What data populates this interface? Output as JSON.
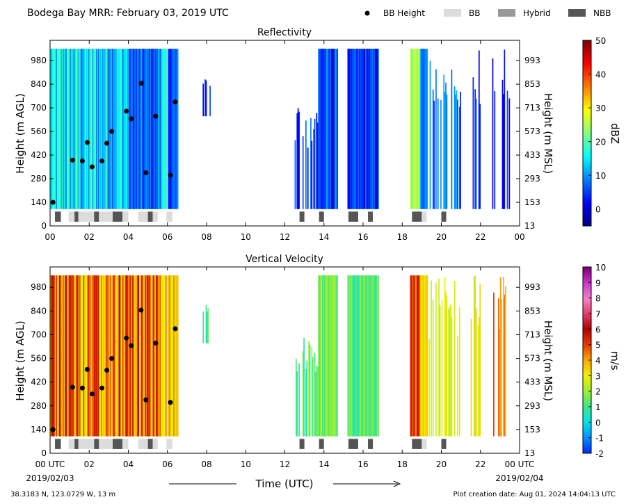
{
  "header": {
    "title": "Bodega Bay MRR:  February 03, 2019 UTC",
    "legend": [
      {
        "label": "BB Height",
        "kind": "dot",
        "color": "#000000"
      },
      {
        "label": "BB",
        "kind": "box",
        "color": "#dcdcdc"
      },
      {
        "label": "Hybrid",
        "kind": "box",
        "color": "#999999"
      },
      {
        "label": "NBB",
        "kind": "box",
        "color": "#555555"
      }
    ]
  },
  "footer": {
    "location": "38.3183 N, 123.0729 W, 13 m",
    "creation": "Plot creation date: Aug 01, 2024 14:04:13 UTC",
    "xlabel": "Time (UTC)",
    "start_date": "2019/02/03",
    "end_date": "2019/02/04"
  },
  "chart_data": [
    {
      "type": "heatmap",
      "title": "Reflectivity",
      "ylabel": "Height (m AGL)",
      "ylabel_right": "Height (m MSL)",
      "ylim": [
        0,
        1100
      ],
      "xlim": [
        0,
        24
      ],
      "yticks": [
        0,
        140,
        280,
        420,
        560,
        700,
        840,
        980
      ],
      "yticks_right": [
        "13",
        "153",
        "293",
        "433",
        "573",
        "713",
        "853",
        "993"
      ],
      "xticks": [
        "00",
        "02",
        "04",
        "06",
        "08",
        "10",
        "12",
        "14",
        "16",
        "18",
        "20",
        "22",
        "00"
      ],
      "colorbar": {
        "label": "dBZ",
        "min": -5,
        "max": 50,
        "ticks": [
          0,
          10,
          20,
          30,
          40,
          50
        ],
        "tick_labels": [
          "0",
          "10",
          "20",
          "30",
          "40",
          "50"
        ],
        "colormap": "jet"
      }
    },
    {
      "type": "heatmap",
      "title": "Vertical Velocity",
      "ylabel": "Height (m AGL)",
      "ylabel_right": "Height (m MSL)",
      "ylim": [
        0,
        1100
      ],
      "xlim": [
        0,
        24
      ],
      "yticks": [
        0,
        140,
        280,
        420,
        560,
        700,
        840,
        980
      ],
      "yticks_right": [
        "13",
        "153",
        "293",
        "433",
        "573",
        "713",
        "853",
        "993"
      ],
      "xticks": [
        "00 UTC",
        "02",
        "04",
        "06",
        "08",
        "10",
        "12",
        "14",
        "16",
        "18",
        "20",
        "22",
        "00 UTC"
      ],
      "colorbar": {
        "label": "m/s",
        "min": -2,
        "max": 10,
        "ticks": [
          -2,
          -1,
          0,
          1,
          2,
          3,
          4,
          5,
          6,
          7,
          8,
          9,
          10
        ],
        "tick_labels": [
          "-2",
          "-1",
          "0",
          "1",
          "2",
          "3",
          "4",
          "5",
          "6",
          "7",
          "8",
          "9",
          "10"
        ],
        "colormap": "rainbow-magenta"
      }
    }
  ],
  "bb_heights": [
    {
      "t": 0.15,
      "h": 140
    },
    {
      "t": 1.15,
      "h": 390
    },
    {
      "t": 1.65,
      "h": 385
    },
    {
      "t": 1.9,
      "h": 495
    },
    {
      "t": 2.15,
      "h": 350
    },
    {
      "t": 2.65,
      "h": 385
    },
    {
      "t": 2.9,
      "h": 490
    },
    {
      "t": 3.15,
      "h": 560
    },
    {
      "t": 3.9,
      "h": 680
    },
    {
      "t": 4.15,
      "h": 635
    },
    {
      "t": 4.65,
      "h": 845
    },
    {
      "t": 4.9,
      "h": 315
    },
    {
      "t": 5.4,
      "h": 650
    },
    {
      "t": 6.15,
      "h": 300
    },
    {
      "t": 6.4,
      "h": 735
    }
  ],
  "bb_types": [
    {
      "start": 0.25,
      "end": 0.55,
      "kind": "NBB"
    },
    {
      "start": 0.95,
      "end": 1.25,
      "kind": "BB"
    },
    {
      "start": 1.25,
      "end": 1.45,
      "kind": "NBB"
    },
    {
      "start": 1.45,
      "end": 2.25,
      "kind": "BB"
    },
    {
      "start": 2.25,
      "end": 2.5,
      "kind": "NBB"
    },
    {
      "start": 2.5,
      "end": 3.2,
      "kind": "BB"
    },
    {
      "start": 3.2,
      "end": 3.7,
      "kind": "NBB"
    },
    {
      "start": 3.7,
      "end": 4.0,
      "kind": "BB"
    },
    {
      "start": 4.5,
      "end": 5.0,
      "kind": "BB"
    },
    {
      "start": 5.0,
      "end": 5.25,
      "kind": "NBB"
    },
    {
      "start": 5.25,
      "end": 5.5,
      "kind": "BB"
    },
    {
      "start": 5.95,
      "end": 6.25,
      "kind": "BB"
    },
    {
      "start": 12.75,
      "end": 13.0,
      "kind": "NBB"
    },
    {
      "start": 13.75,
      "end": 14.0,
      "kind": "NBB"
    },
    {
      "start": 15.25,
      "end": 15.75,
      "kind": "NBB"
    },
    {
      "start": 16.25,
      "end": 16.5,
      "kind": "NBB"
    },
    {
      "start": 18.5,
      "end": 19.0,
      "kind": "NBB"
    },
    {
      "start": 19.0,
      "end": 19.25,
      "kind": "BB"
    },
    {
      "start": 20.0,
      "end": 20.25,
      "kind": "NBB"
    }
  ]
}
